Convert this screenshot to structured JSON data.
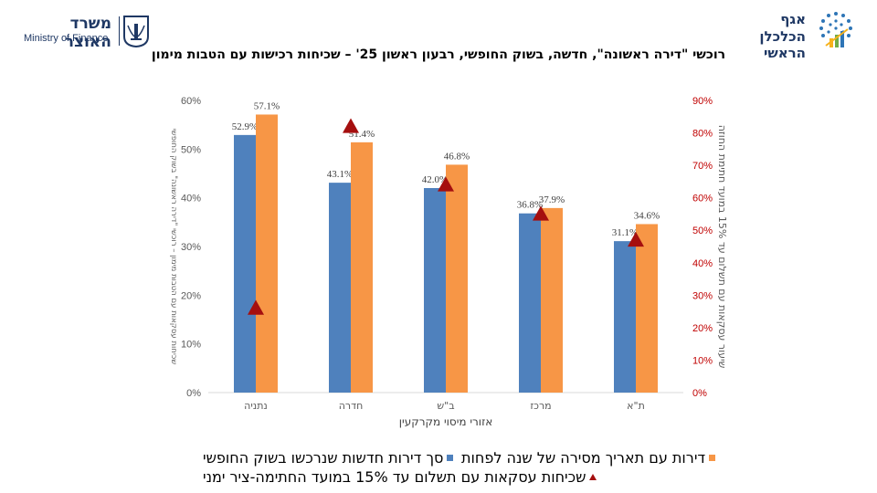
{
  "header": {
    "ministry_he": "משרד האוצר",
    "ministry_en": "Ministry of Finance",
    "chief_economist_line1": "אגף",
    "chief_economist_line2": "הכלכלן הראשי"
  },
  "chart_data": {
    "type": "bar",
    "title": "רוכשי \"דירה ראשונה\", חדשה, בשוק החופשי, רבעון ראשון 25' – שכיחות רכישות עם הטבות מימון",
    "xlabel": "אזורי מיסוי מקרקעין",
    "ylabel": "שכיחות עסקאות עם הטבות מימון – רוכשי \"דירה ראשונה\" בשוק החופשי",
    "y2label": "שיעור עסקאות עם תשלום עד 15% במועד חתימת החוזה",
    "categories": [
      "נתניה",
      "חדרה",
      "ב\"ש",
      "מרכז",
      "ת\"א"
    ],
    "ylim": [
      0,
      60
    ],
    "yticks": [
      "0%",
      "10%",
      "20%",
      "30%",
      "40%",
      "50%",
      "60%"
    ],
    "y2lim": [
      0,
      90
    ],
    "y2ticks": [
      "0%",
      "10%",
      "20%",
      "30%",
      "40%",
      "50%",
      "60%",
      "70%",
      "80%",
      "90%"
    ],
    "series": [
      {
        "name": "סך דירות חדשות שנרכשו בשוק החופשי",
        "type": "bar",
        "color": "#4f81bd",
        "values": [
          52.9,
          43.1,
          42.0,
          36.8,
          31.1
        ],
        "labels": [
          "52.9%",
          "43.1%",
          "42.0%",
          "36.8%",
          "31.1%"
        ]
      },
      {
        "name": "דירות עם תאריך מסירה של שנה לפחות",
        "type": "bar",
        "color": "#f79646",
        "values": [
          57.1,
          51.4,
          46.8,
          37.9,
          34.6
        ],
        "labels": [
          "57.1%",
          "51.4%",
          "46.8%",
          "37.9%",
          "34.6%"
        ]
      },
      {
        "name": "שכיחות עסקאות עם תשלום עד 15% במועד החתימה-ציר ימני",
        "type": "scatter",
        "axis": "right",
        "color": "#a50f0f",
        "marker": "triangle",
        "values": [
          26,
          82,
          64,
          55,
          47
        ]
      }
    ],
    "grid": false,
    "legend": "bottom"
  }
}
